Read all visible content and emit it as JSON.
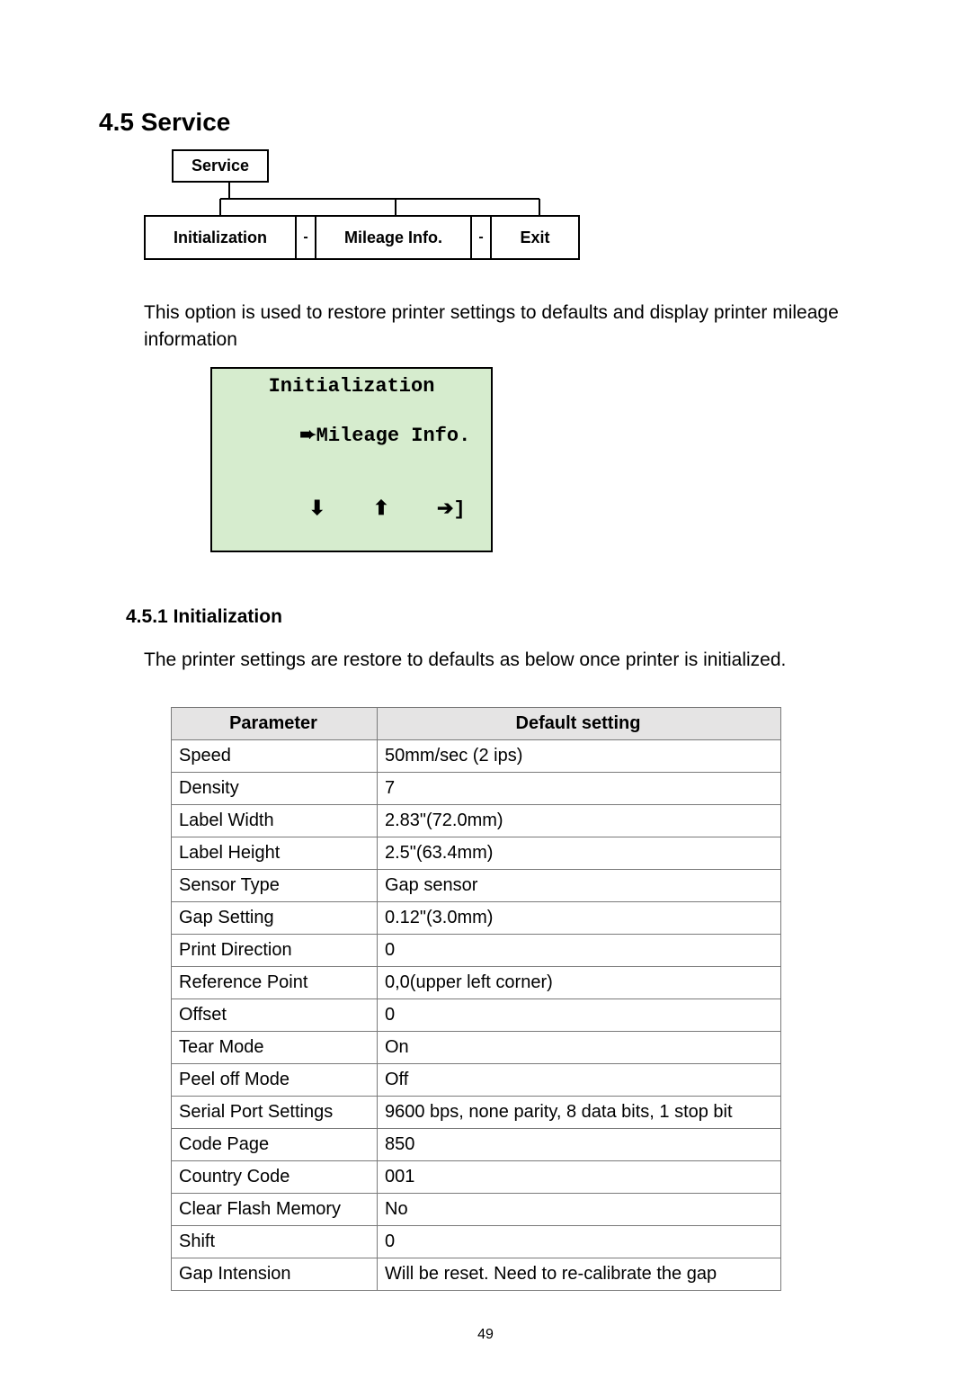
{
  "section": {
    "number": "4.5",
    "title": "Service"
  },
  "menu": {
    "root": "Service",
    "items": [
      "Initialization",
      "Mileage Info.",
      "Exit"
    ],
    "separator": "-"
  },
  "intro": "This option is used to restore printer settings to defaults and display printer mileage information",
  "lcd": {
    "line1": "Initialization",
    "line2_pointer": "➨",
    "line2_text": "Mileage Info.",
    "icons": {
      "down": "⬇",
      "up": "⬆",
      "right": "➔",
      "bracket": "]"
    },
    "bg_color": "#d6ecce"
  },
  "subsection": {
    "number": "4.5.1",
    "title": "Initialization"
  },
  "sub_intro": "The printer settings are restore to defaults as below once printer is initialized.",
  "table": {
    "headers": [
      "Parameter",
      "Default setting"
    ],
    "rows": [
      [
        "Speed",
        "50mm/sec (2 ips)"
      ],
      [
        "Density",
        "7"
      ],
      [
        "Label Width",
        "2.83\"(72.0mm)"
      ],
      [
        "Label Height",
        "2.5\"(63.4mm)"
      ],
      [
        "Sensor Type",
        "Gap sensor"
      ],
      [
        "Gap Setting",
        "0.12\"(3.0mm)"
      ],
      [
        "Print Direction",
        "0"
      ],
      [
        "Reference Point",
        "0,0(upper left corner)"
      ],
      [
        "Offset",
        "0"
      ],
      [
        "Tear Mode",
        "On"
      ],
      [
        "Peel off Mode",
        "Off"
      ],
      [
        "Serial Port Settings",
        "9600 bps, none parity, 8 data bits, 1 stop bit"
      ],
      [
        "Code Page",
        "850"
      ],
      [
        "Country Code",
        "001"
      ],
      [
        "Clear Flash Memory",
        "No"
      ],
      [
        "Shift",
        "0"
      ],
      [
        "Gap Intension",
        "Will be reset. Need to re-calibrate the gap"
      ]
    ]
  },
  "page_number": "49"
}
